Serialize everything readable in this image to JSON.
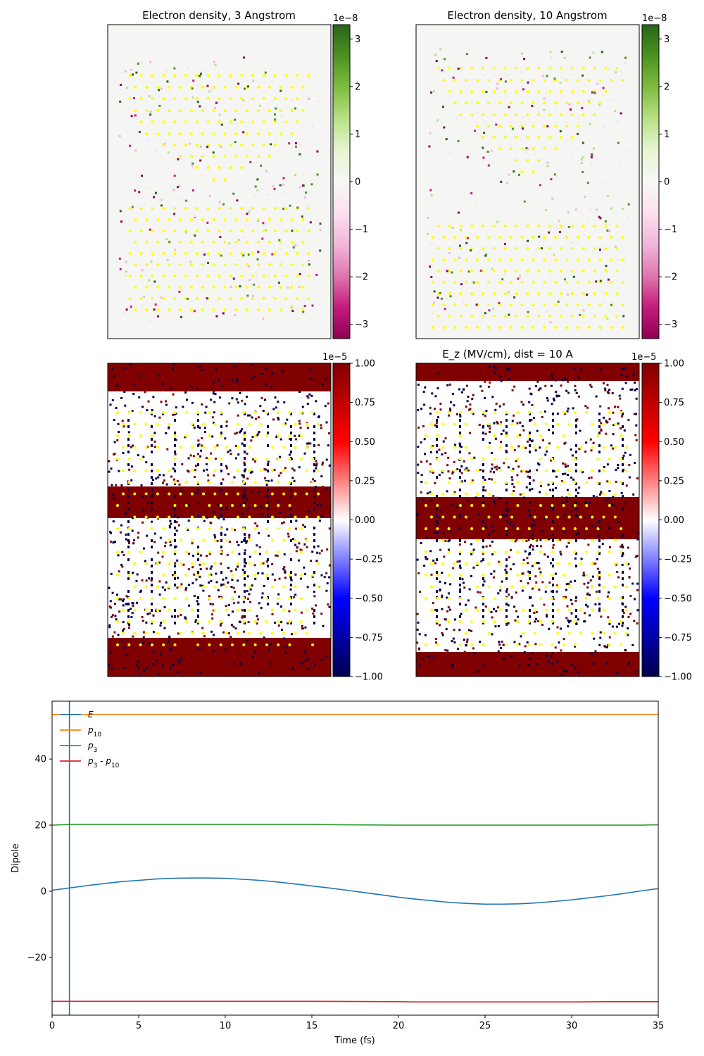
{
  "chart_data": [
    {
      "type": "heatmap",
      "title": "Electron density, 3 Angstrom",
      "colormap": "PiYG",
      "offset_text": "1e−8",
      "vmin": -3.3,
      "vmax": 3.3,
      "colorbar_ticks": [
        3,
        2,
        1,
        0,
        -1,
        -2,
        -3
      ],
      "colorbar_tick_labels": [
        "3",
        "2",
        "1",
        "0",
        "−1",
        "−2",
        "−3"
      ],
      "background_color": "#f5f5f4",
      "atom_color": "#ffff00",
      "grid_rows": 29,
      "grid_cols": 19
    },
    {
      "type": "heatmap",
      "title": "Electron density, 10 Angstrom",
      "colormap": "PiYG",
      "offset_text": "1e−8",
      "vmin": -3.3,
      "vmax": 3.3,
      "colorbar_ticks": [
        3,
        2,
        1,
        0,
        -1,
        -2,
        -3
      ],
      "colorbar_tick_labels": [
        "3",
        "2",
        "1",
        "0",
        "−1",
        "−2",
        "−3"
      ],
      "background_color": "#f5f5f4",
      "atom_color": "#ffff00",
      "grid_rows": 29,
      "grid_cols": 19
    },
    {
      "type": "heatmap",
      "title": "",
      "colormap": "seismic",
      "offset_text": "1e−5",
      "vmin": -1.0,
      "vmax": 1.0,
      "colorbar_ticks": [
        1.0,
        0.75,
        0.5,
        0.25,
        0.0,
        -0.25,
        -0.5,
        -0.75,
        -1.0
      ],
      "colorbar_tick_labels": [
        "1.00",
        "0.75",
        "0.50",
        "0.25",
        "0.00",
        "−0.25",
        "−0.50",
        "−0.75",
        "−1.00"
      ],
      "saturated_high_color": "#800000",
      "saturated_low_color": "#00004c",
      "atom_color": "#ffff00"
    },
    {
      "type": "heatmap",
      "title": "E_z (MV/cm), dist = 10 A",
      "colormap": "seismic",
      "offset_text": "1e−5",
      "vmin": -1.0,
      "vmax": 1.0,
      "colorbar_ticks": [
        1.0,
        0.75,
        0.5,
        0.25,
        0.0,
        -0.25,
        -0.5,
        -0.75,
        -1.0
      ],
      "colorbar_tick_labels": [
        "1.00",
        "0.75",
        "0.50",
        "0.25",
        "0.00",
        "−0.25",
        "−0.50",
        "−0.75",
        "−1.00"
      ],
      "saturated_high_color": "#800000",
      "saturated_low_color": "#00004c",
      "atom_color": "#ffff00"
    },
    {
      "type": "line",
      "xlabel": "Time (fs)",
      "ylabel": "Dipole",
      "xlim": [
        0,
        35
      ],
      "ylim": [
        -37.5,
        57.5
      ],
      "xticks": [
        0,
        5,
        10,
        15,
        20,
        25,
        30,
        35
      ],
      "xtick_labels": [
        "0",
        "5",
        "10",
        "15",
        "20",
        "25",
        "30",
        "35"
      ],
      "yticks": [
        -20,
        0,
        20,
        40
      ],
      "ytick_labels": [
        "−20",
        "0",
        "20",
        "40"
      ],
      "vline_x": 1.0,
      "vline_color": "#1f77b4",
      "legend_position": "top-left",
      "series": [
        {
          "name": "E",
          "color": "#1f77b4",
          "x": [
            0,
            1,
            2,
            3,
            4,
            5,
            6,
            7,
            8,
            9,
            10,
            11,
            12,
            13,
            14,
            15,
            16,
            17,
            18,
            19,
            20,
            21,
            22,
            23,
            24,
            25,
            26,
            27,
            28,
            29,
            30,
            31,
            32,
            33,
            34,
            35
          ],
          "y": [
            0.3,
            1.0,
            1.7,
            2.3,
            2.9,
            3.3,
            3.7,
            3.9,
            4.0,
            4.0,
            3.9,
            3.6,
            3.3,
            2.8,
            2.2,
            1.6,
            1.0,
            0.3,
            -0.4,
            -1.1,
            -1.8,
            -2.4,
            -2.9,
            -3.4,
            -3.7,
            -3.9,
            -3.9,
            -3.8,
            -3.5,
            -3.1,
            -2.6,
            -2.0,
            -1.4,
            -0.7,
            0.1,
            0.8
          ]
        },
        {
          "name": "p_10",
          "color": "#ff7f0e",
          "x": [
            0,
            5,
            10,
            15,
            20,
            25,
            30,
            35
          ],
          "y": [
            53.5,
            53.5,
            53.5,
            53.5,
            53.5,
            53.5,
            53.5,
            53.5
          ]
        },
        {
          "name": "p_3",
          "color": "#2ca02c",
          "x": [
            0,
            1,
            5,
            10,
            15,
            17,
            20,
            25,
            30,
            34,
            35
          ],
          "y": [
            20.0,
            20.2,
            20.2,
            20.2,
            20.2,
            20.1,
            20.0,
            20.0,
            20.0,
            20.0,
            20.1
          ]
        },
        {
          "name": "p_3 - p_10",
          "color": "#d62728",
          "x": [
            0,
            5,
            10,
            15,
            20,
            21,
            25,
            30,
            32,
            35
          ],
          "y": [
            -33.3,
            -33.3,
            -33.3,
            -33.3,
            -33.4,
            -33.5,
            -33.5,
            -33.5,
            -33.4,
            -33.4
          ]
        }
      ]
    }
  ]
}
